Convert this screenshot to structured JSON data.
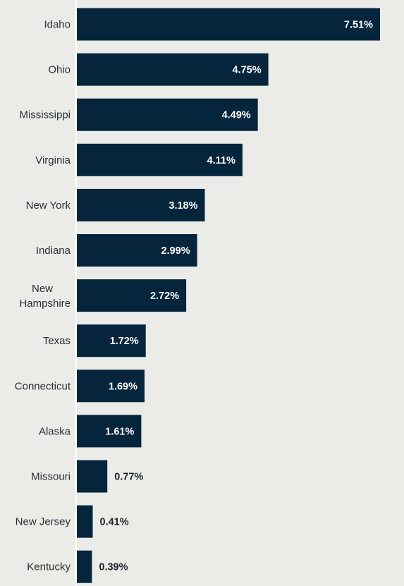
{
  "chart_data": {
    "type": "bar",
    "orientation": "horizontal",
    "categories": [
      "Idaho",
      "Ohio",
      "Mississippi",
      "Virginia",
      "New York",
      "Indiana",
      "New Hampshire",
      "Texas",
      "Connecticut",
      "Alaska",
      "Missouri",
      "New Jersey",
      "Kentucky"
    ],
    "values": [
      7.51,
      4.75,
      4.49,
      4.11,
      3.18,
      2.99,
      2.72,
      1.72,
      1.69,
      1.61,
      0.77,
      0.41,
      0.39
    ],
    "value_labels": [
      "7.51%",
      "4.75%",
      "4.49%",
      "4.11%",
      "3.18%",
      "2.99%",
      "2.72%",
      "1.72%",
      "1.69%",
      "1.61%",
      "0.77%",
      "0.41%",
      "0.39%"
    ],
    "title": "",
    "xlabel": "",
    "ylabel": "",
    "xlim": [
      0,
      7.51
    ],
    "grid": false,
    "legend": "none",
    "colors": {
      "bar": "#05253d",
      "background": "#ebebe7",
      "label_inside": "#ffffff",
      "label_outside": "#1f2530",
      "category_text": "#2b2f36",
      "axis_line": "#ffffff"
    }
  }
}
